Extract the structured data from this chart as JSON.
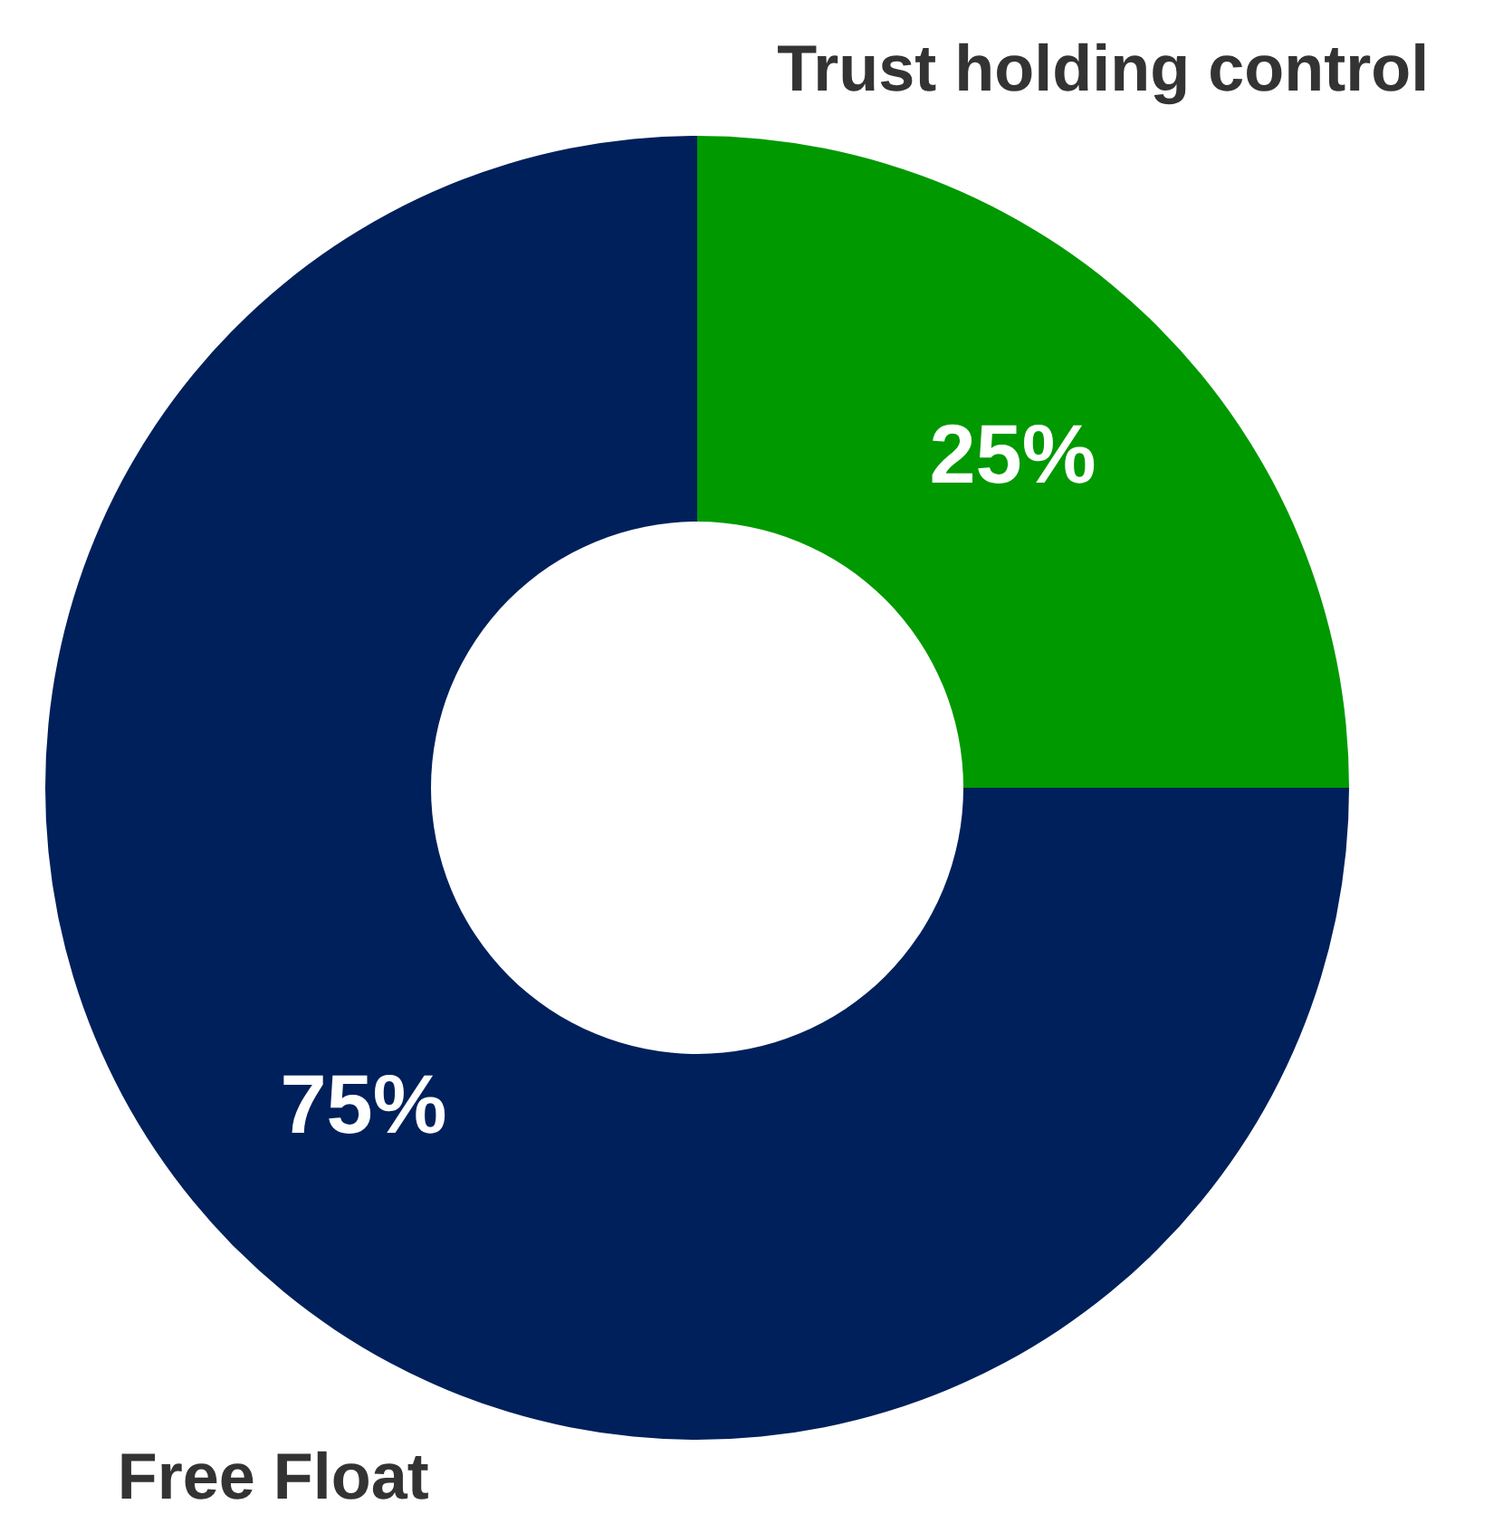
{
  "chart_data": {
    "type": "donut",
    "categories": [
      "Trust holding control",
      "Free Float"
    ],
    "values": [
      25,
      75
    ],
    "colors": [
      "#009900",
      "#00205b"
    ],
    "value_labels": [
      "25%",
      "75%"
    ]
  }
}
